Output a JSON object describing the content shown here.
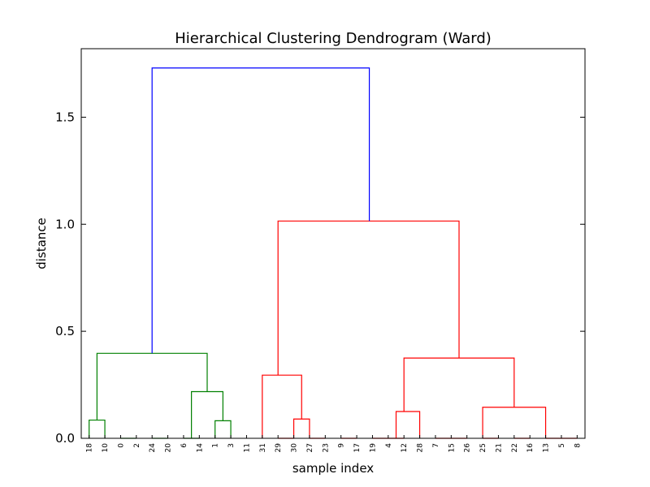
{
  "chart_data": {
    "type": "dendrogram",
    "title": "Hierarchical Clustering Dendrogram (Ward)",
    "xlabel": "sample index",
    "ylabel": "distance",
    "ylim": [
      0.0,
      1.82
    ],
    "yticks": [
      0.0,
      0.5,
      1.0,
      1.5
    ],
    "ytick_labels": [
      "0.0",
      "0.5",
      "1.0",
      "1.5"
    ],
    "grid": false,
    "leaf_order": [
      "18",
      "10",
      "0",
      "2",
      "24",
      "20",
      "6",
      "14",
      "1",
      "3",
      "11",
      "31",
      "29",
      "30",
      "27",
      "23",
      "9",
      "17",
      "19",
      "4",
      "12",
      "28",
      "7",
      "15",
      "26",
      "25",
      "21",
      "22",
      "16",
      "13",
      "5",
      "8"
    ],
    "colors": {
      "green": "#008000",
      "red": "#ff0000",
      "blue": "#0000ff"
    },
    "links": [
      {
        "l": 0,
        "r": 1,
        "lh": 0.0,
        "rh": 0.0,
        "h": 0.085,
        "color": "green"
      },
      {
        "l": 2,
        "r": 3,
        "lh": 0.0,
        "rh": 0.0,
        "h": 0.0,
        "color": "green"
      },
      {
        "l": 4,
        "r": 5,
        "lh": 0.0,
        "rh": 0.0,
        "h": 0.0,
        "color": "green"
      },
      {
        "l": 6,
        "r": 7,
        "lh": 0.0,
        "rh": 0.0,
        "h": 0.0,
        "color": "green"
      },
      {
        "l": 8,
        "r": 9,
        "lh": 0.0,
        "rh": 0.0,
        "h": 0.082,
        "color": "green"
      },
      {
        "l": 6.5,
        "r": 8.5,
        "lh": 0.0,
        "rh": 0.082,
        "h": 0.218,
        "color": "green"
      },
      {
        "l": 0.5,
        "r": 7.5,
        "lh": 0.085,
        "rh": 0.218,
        "h": 0.397,
        "color": "green"
      },
      {
        "l": 12,
        "r": 13,
        "lh": 0.0,
        "rh": 0.0,
        "h": 0.0,
        "color": "red"
      },
      {
        "l": 14,
        "r": 15,
        "lh": 0.0,
        "rh": 0.0,
        "h": 0.0,
        "color": "red"
      },
      {
        "l": 13,
        "r": 14,
        "lh": 0.0,
        "rh": 0.0,
        "h": 0.09,
        "color": "red"
      },
      {
        "l": 11,
        "r": 13.5,
        "lh": 0.0,
        "rh": 0.09,
        "h": 0.295,
        "color": "red"
      },
      {
        "l": 16,
        "r": 17,
        "lh": 0.0,
        "rh": 0.0,
        "h": 0.0,
        "color": "red"
      },
      {
        "l": 18,
        "r": 19,
        "lh": 0.0,
        "rh": 0.0,
        "h": 0.0,
        "color": "red"
      },
      {
        "l": 19,
        "r": 20,
        "lh": 0.0,
        "rh": 0.0,
        "h": 0.0,
        "color": "red"
      },
      {
        "l": 19.5,
        "r": 21,
        "lh": 0.0,
        "rh": 0.0,
        "h": 0.125,
        "color": "red"
      },
      {
        "l": 22,
        "r": 23,
        "lh": 0.0,
        "rh": 0.0,
        "h": 0.0,
        "color": "red"
      },
      {
        "l": 23,
        "r": 24,
        "lh": 0.0,
        "rh": 0.0,
        "h": 0.0,
        "color": "red"
      },
      {
        "l": 25,
        "r": 26,
        "lh": 0.0,
        "rh": 0.0,
        "h": 0.0,
        "color": "red"
      },
      {
        "l": 27,
        "r": 28,
        "lh": 0.0,
        "rh": 0.0,
        "h": 0.0,
        "color": "red"
      },
      {
        "l": 29,
        "r": 30,
        "lh": 0.0,
        "rh": 0.0,
        "h": 0.0,
        "color": "red"
      },
      {
        "l": 30,
        "r": 31,
        "lh": 0.0,
        "rh": 0.0,
        "h": 0.0,
        "color": "red"
      },
      {
        "l": 25,
        "r": 29,
        "lh": 0.0,
        "rh": 0.0,
        "h": 0.145,
        "color": "red"
      },
      {
        "l": 20,
        "r": 27,
        "lh": 0.125,
        "rh": 0.145,
        "h": 0.375,
        "color": "red"
      },
      {
        "l": 12,
        "r": 23.5,
        "lh": 0.295,
        "rh": 0.375,
        "h": 1.015,
        "color": "red"
      },
      {
        "l": 4,
        "r": 17.8,
        "lh": 0.397,
        "rh": 1.015,
        "h": 1.73,
        "color": "blue"
      }
    ]
  }
}
